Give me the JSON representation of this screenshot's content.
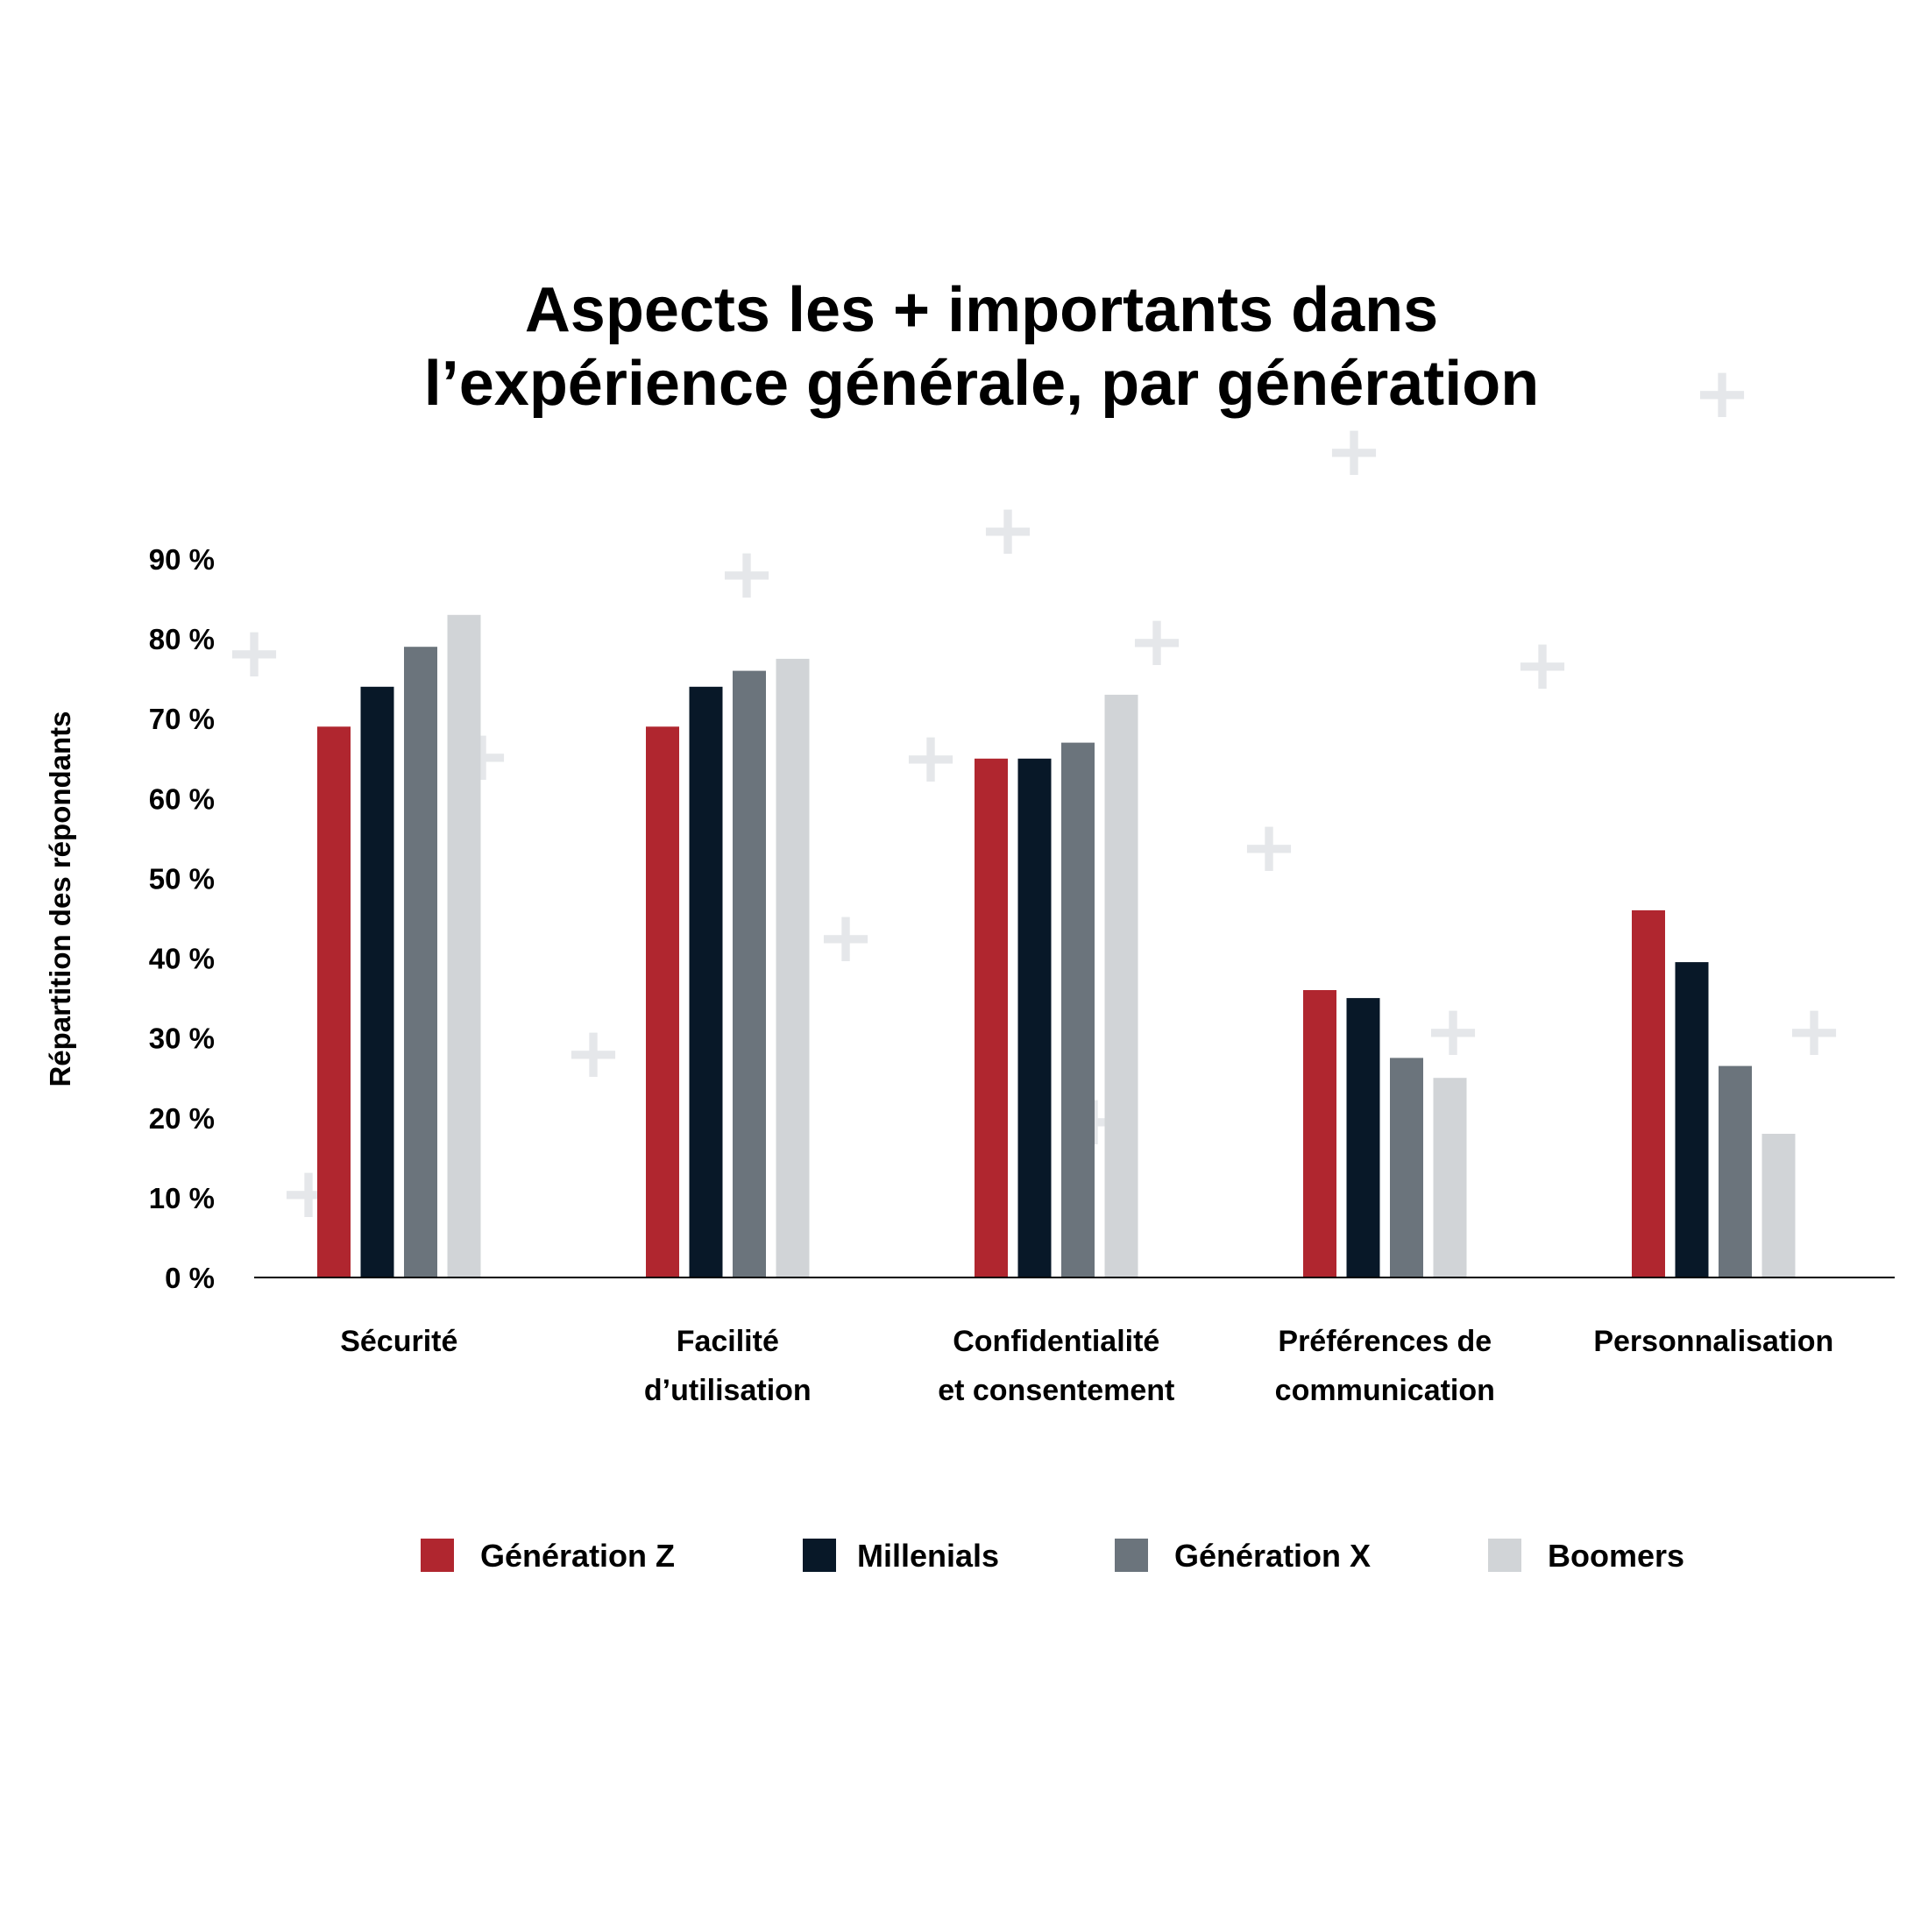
{
  "chart_data": {
    "type": "bar",
    "title": [
      "Aspects les + importants dans",
      "l’expérience générale, par génération"
    ],
    "xlabel": "",
    "ylabel": "Répartition des répondants",
    "ylim": [
      0,
      90
    ],
    "y_ticks": [
      0,
      10,
      20,
      30,
      40,
      50,
      60,
      70,
      80,
      90
    ],
    "y_tick_labels": [
      "0 %",
      "10 %",
      "20 %",
      "30 %",
      "40 %",
      "50 %",
      "60 %",
      "70 %",
      "80 %",
      "90 %"
    ],
    "categories": [
      [
        "Sécurité"
      ],
      [
        "Facilité",
        "d’utilisation"
      ],
      [
        "Confidentialité",
        "et consentement"
      ],
      [
        "Préférences de",
        "communication"
      ],
      [
        "Personnalisation"
      ]
    ],
    "series": [
      {
        "name": "Génération Z",
        "color": "#b0262f",
        "values": [
          69,
          69,
          65,
          36,
          46
        ]
      },
      {
        "name": "Millenials",
        "color": "#081828",
        "values": [
          74,
          74,
          65,
          35,
          39.5
        ]
      },
      {
        "name": "Génération X",
        "color": "#6b747c",
        "values": [
          79,
          76,
          67,
          27.5,
          26.5
        ]
      },
      {
        "name": "Boomers",
        "color": "#d1d4d7",
        "values": [
          83,
          77.5,
          73,
          25,
          18
        ]
      }
    ],
    "grid": false,
    "legend": "bottom"
  },
  "decoration": {
    "plus_color": "#e5e7ea",
    "plus_glyph": "+"
  }
}
